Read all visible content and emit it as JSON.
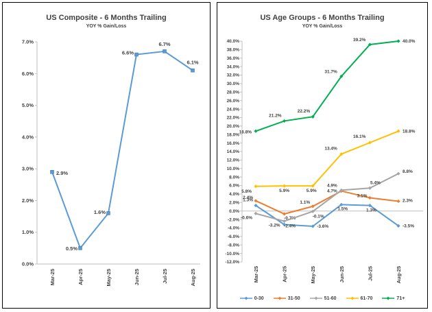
{
  "chart_data": [
    {
      "type": "line",
      "title": "US Composite - 6 Months Trailing",
      "subtitle": "YOY % Gain/Loss",
      "categories": [
        "Mar-25",
        "Apr-25",
        "May-25",
        "Jun-25",
        "Jul-25",
        "Aug-25"
      ],
      "series": [
        {
          "name": "",
          "color": "#5B9BD5",
          "values": [
            2.9,
            0.5,
            1.6,
            6.6,
            6.7,
            6.1
          ]
        }
      ],
      "data_labels": [
        "2.9%",
        "0.5%",
        "1.6%",
        "6.6%",
        "6.7%",
        "6.1%"
      ],
      "ylim": [
        0,
        7
      ],
      "yticks": [
        0,
        1,
        2,
        3,
        4,
        5,
        6,
        7
      ],
      "ytick_labels": [
        "0.0%",
        "1.0%",
        "2.0%",
        "3.0%",
        "4.0%",
        "5.0%",
        "6.0%",
        "7.0%"
      ],
      "grid": false,
      "legend": "none"
    },
    {
      "type": "line",
      "title": "US Age Groups - 6 Months Trailing",
      "subtitle": "YOY % Gain/Loss",
      "categories": [
        "Mar-25",
        "Apr-25",
        "May-25",
        "Jun-25",
        "Jul-25",
        "Aug-25"
      ],
      "series": [
        {
          "name": "0-30",
          "color": "#5B9BD5",
          "values": [
            1.3,
            -3.2,
            -3.6,
            1.5,
            1.3,
            -3.5
          ],
          "labels": [
            "1.3%",
            "-3.2%",
            "-3.6%",
            "1.5%",
            "1.3%",
            "-3.5%"
          ]
        },
        {
          "name": "31-50",
          "color": "#ED7D31",
          "values": [
            2.4,
            -0.7,
            1.1,
            4.7,
            3.1,
            2.3
          ],
          "labels": [
            "2.4%",
            "-0.7%",
            "1.1%",
            "4.7%",
            "3.1%",
            "2.3%"
          ]
        },
        {
          "name": "51-60",
          "color": "#A5A5A5",
          "values": [
            -0.6,
            -2.4,
            -0.1,
            4.9,
            5.4,
            8.8
          ],
          "labels": [
            "-0.6%",
            "-2.4%",
            "-0.1%",
            "4.9%",
            "5.4%",
            "8.8%"
          ]
        },
        {
          "name": "61-70",
          "color": "#FFC000",
          "values": [
            5.8,
            5.9,
            5.9,
            13.4,
            16.1,
            18.8
          ],
          "labels": [
            "5.8%",
            "5.9%",
            "5.9%",
            "13.4%",
            "16.1%",
            "18.8%"
          ]
        },
        {
          "name": "71+",
          "color": "#00B050",
          "values": [
            18.8,
            21.2,
            22.2,
            31.7,
            39.2,
            40.0
          ],
          "labels": [
            "18.8%",
            "21.2%",
            "22.2%",
            "31.7%",
            "39.2%",
            "40.0%"
          ]
        }
      ],
      "ylim": [
        -12,
        40
      ],
      "ytick_step": 2,
      "ytick_labels": [
        "-12.0%",
        "-10.0%",
        "-8.0%",
        "-6.0%",
        "-4.0%",
        "-2.0%",
        "0.0%",
        "2.0%",
        "4.0%",
        "6.0%",
        "8.0%",
        "10.0%",
        "12.0%",
        "14.0%",
        "16.0%",
        "18.0%",
        "20.0%",
        "22.0%",
        "24.0%",
        "26.0%",
        "28.0%",
        "30.0%",
        "32.0%",
        "34.0%",
        "36.0%",
        "38.0%",
        "40.0%"
      ],
      "grid": false,
      "legend": "bottom"
    }
  ]
}
